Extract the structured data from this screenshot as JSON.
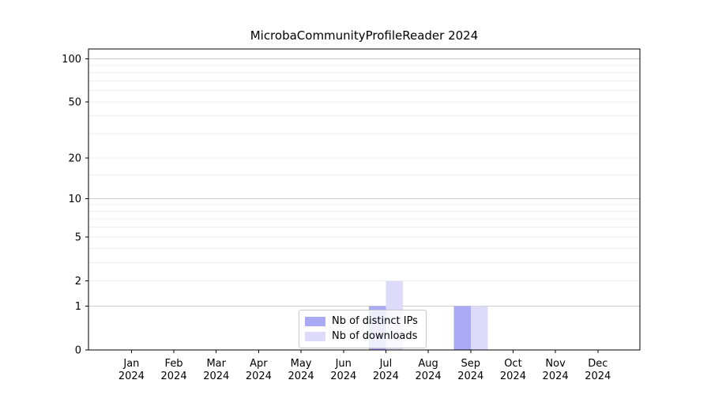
{
  "chart_data": {
    "type": "bar",
    "title": "MicrobaCommunityProfileReader 2024",
    "categories": [
      "Jan",
      "Feb",
      "Mar",
      "Apr",
      "May",
      "Jun",
      "Jul",
      "Aug",
      "Sep",
      "Oct",
      "Nov",
      "Dec"
    ],
    "category_year": "2024",
    "series": [
      {
        "name": "Nb of distinct IPs",
        "color": "#a9a9f5",
        "values": [
          0,
          0,
          0,
          0,
          0,
          0,
          1,
          0,
          1,
          0,
          0,
          0
        ]
      },
      {
        "name": "Nb of downloads",
        "color": "#dcdcfa",
        "values": [
          0,
          0,
          0,
          0,
          0,
          0,
          2,
          0,
          1,
          0,
          0,
          0
        ]
      }
    ],
    "y_axis": {
      "scale": "log1p",
      "ticks": [
        0,
        1,
        2,
        5,
        10,
        20,
        50,
        100
      ],
      "major_gridlines": [
        1,
        10,
        100
      ],
      "minor_gridlines": [
        3,
        4,
        6,
        7,
        8,
        9,
        15,
        30,
        40,
        60,
        70,
        80,
        90
      ],
      "top_value": 117,
      "ylim": [
        0,
        117
      ]
    },
    "x_axis": {
      "tick_style": "two-line month + year"
    },
    "legend": {
      "position": "lower center",
      "frame": true
    },
    "colors": {
      "grid_major": "#cccccc",
      "grid_minor": "#efefef",
      "axis": "#000000",
      "text": "#000000",
      "background": "#ffffff"
    },
    "grid": "on"
  }
}
